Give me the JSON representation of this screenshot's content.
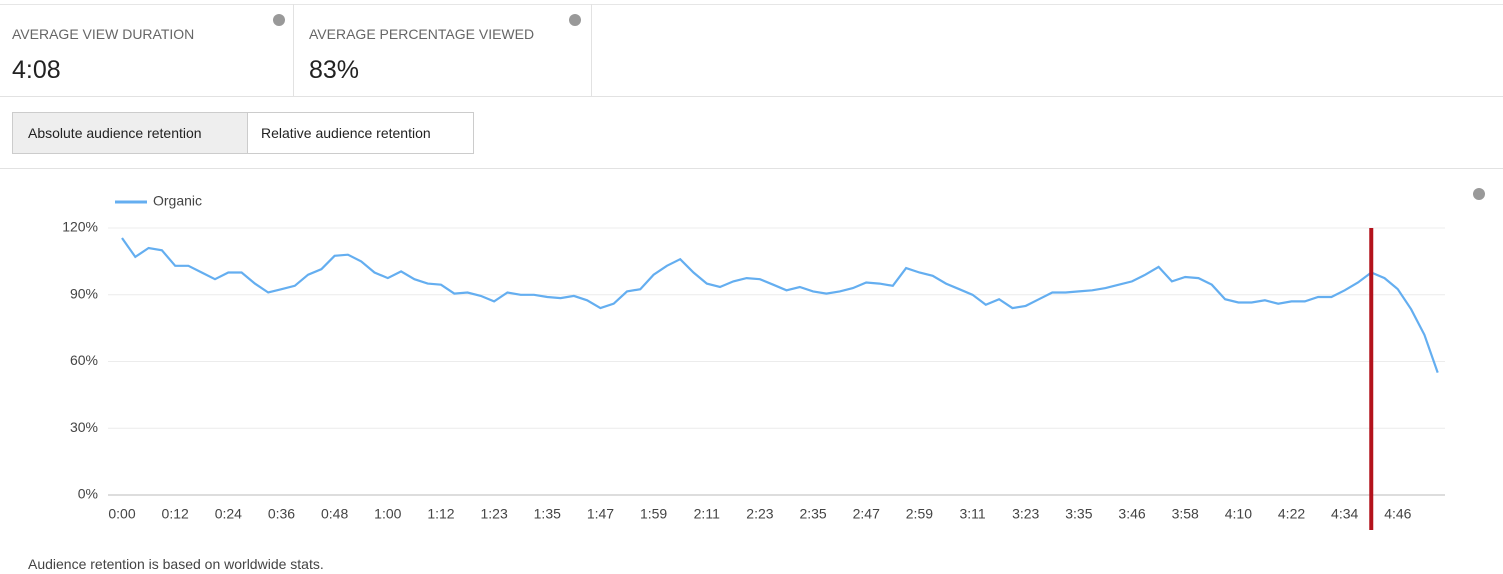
{
  "metrics": [
    {
      "label": "AVERAGE VIEW DURATION",
      "value": "4:08"
    },
    {
      "label": "AVERAGE PERCENTAGE VIEWED",
      "value": "83%"
    }
  ],
  "tabs": [
    "Absolute audience retention",
    "Relative audience retention"
  ],
  "footer": "Audience retention is based on worldwide stats.",
  "chart_data": {
    "type": "line",
    "categories": [
      "0:00",
      null,
      null,
      null,
      "0:12",
      null,
      null,
      null,
      "0:24",
      null,
      null,
      null,
      "0:36",
      null,
      null,
      null,
      "0:48",
      null,
      null,
      null,
      "1:00",
      null,
      null,
      null,
      "1:12",
      null,
      null,
      null,
      "1:23",
      null,
      null,
      null,
      "1:35",
      null,
      null,
      null,
      "1:47",
      null,
      null,
      null,
      "1:59",
      null,
      null,
      null,
      "2:11",
      null,
      null,
      null,
      "2:23",
      null,
      null,
      null,
      "2:35",
      null,
      null,
      null,
      "2:47",
      null,
      null,
      null,
      "2:59",
      null,
      null,
      null,
      "3:11",
      null,
      null,
      null,
      "3:23",
      null,
      null,
      null,
      "3:35",
      null,
      null,
      null,
      "3:46",
      null,
      null,
      null,
      "3:58",
      null,
      null,
      null,
      "4:10",
      null,
      null,
      null,
      "4:22",
      null,
      null,
      null,
      "4:34",
      null,
      null,
      null,
      "4:46",
      null,
      null,
      null
    ],
    "series": [
      {
        "name": "Organic",
        "color": "#64aef0",
        "values": [
          115.5,
          107,
          111,
          110,
          103,
          103,
          100,
          97,
          100,
          100,
          95,
          91,
          92.5,
          94,
          99,
          101.5,
          107.5,
          108,
          105,
          100,
          97.5,
          100.5,
          97,
          95,
          94.5,
          90.5,
          91,
          89.5,
          87,
          91,
          90,
          90,
          89,
          88.5,
          89.5,
          87.5,
          84,
          86,
          91.5,
          92.5,
          99,
          103,
          106,
          100,
          95,
          93.5,
          96,
          97.5,
          97,
          94.5,
          92,
          93.5,
          91.5,
          90.5,
          91.5,
          93,
          95.5,
          95,
          94,
          102,
          100,
          98.5,
          95,
          92.5,
          90,
          85.5,
          88,
          84,
          85,
          88,
          91,
          91,
          91.5,
          92,
          93,
          94.5,
          96,
          99,
          102.5,
          96,
          98,
          97.5,
          94.5,
          88,
          86.5,
          86.5,
          87.5,
          86,
          87,
          87,
          89,
          89,
          92,
          95.5,
          100,
          97.5,
          92.5,
          83.5,
          72,
          55
        ]
      }
    ],
    "ylim": [
      0,
      120
    ],
    "yticks": [
      {
        "value": 0,
        "label": "0%"
      },
      {
        "value": 30,
        "label": "30%"
      },
      {
        "value": 60,
        "label": "60%"
      },
      {
        "value": 90,
        "label": "90%"
      },
      {
        "value": 120,
        "label": "120%"
      }
    ],
    "grid": true,
    "marker": {
      "index": 94,
      "color": "#b3121b"
    }
  }
}
